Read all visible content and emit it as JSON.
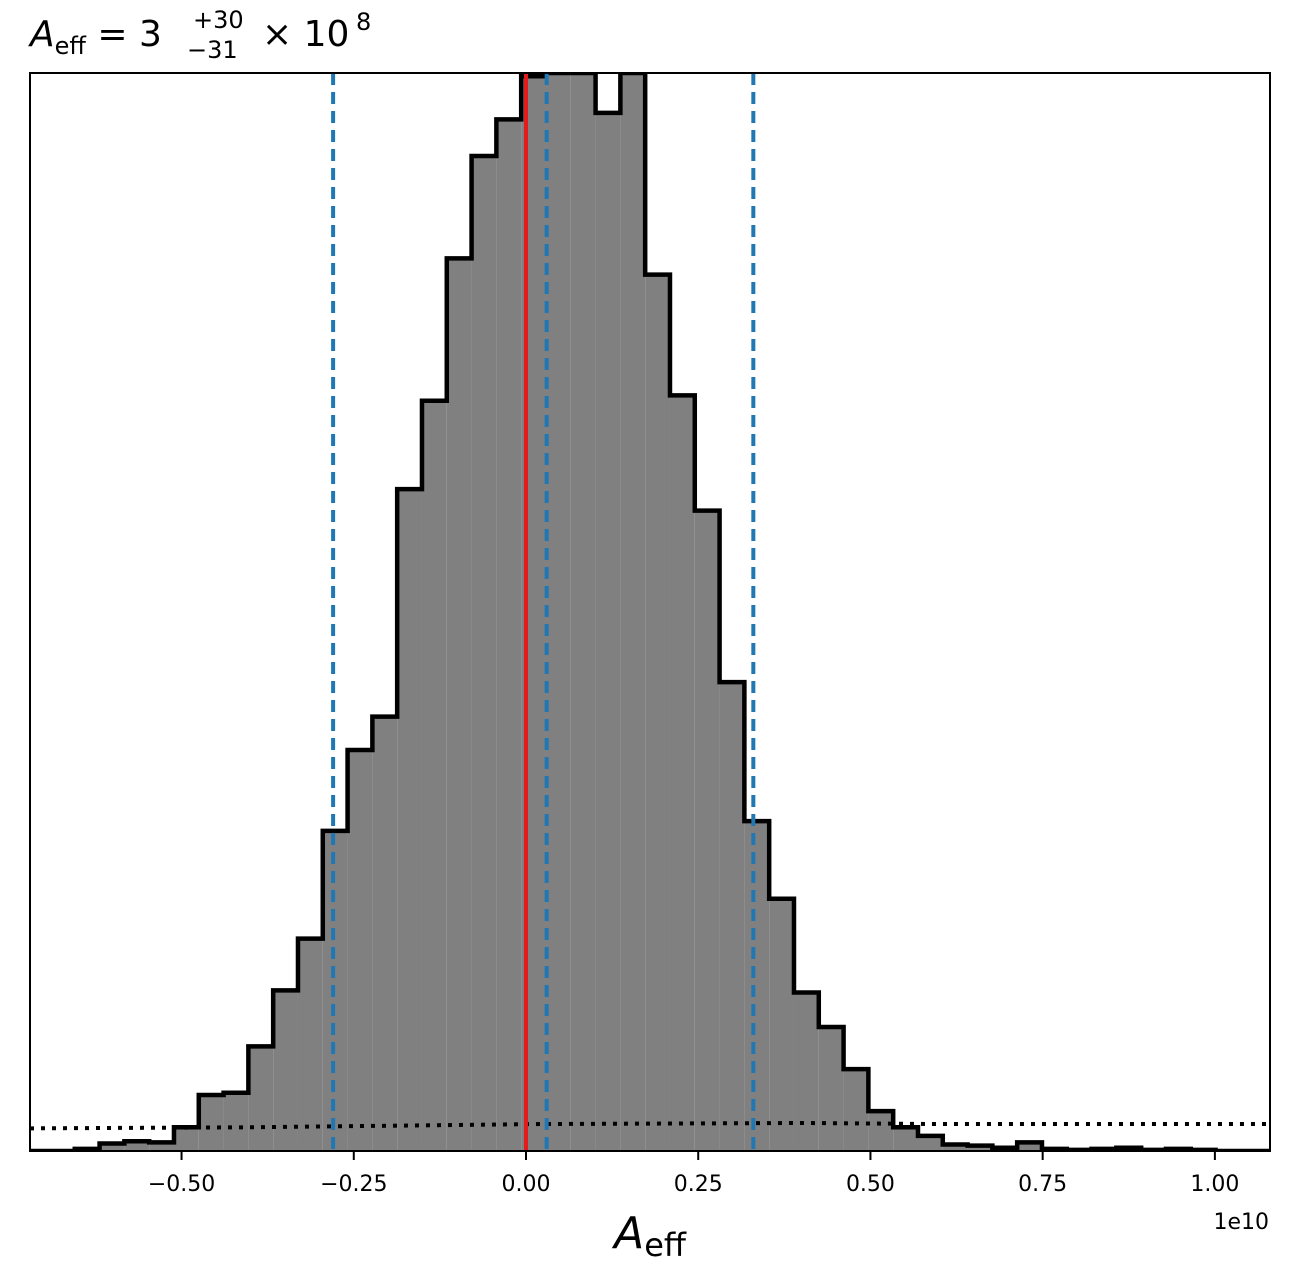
{
  "chart_data": {
    "type": "histogram",
    "title": {
      "symbol": "A",
      "symbol_subscript": "eff",
      "equals": " = 3",
      "upper_error": "+30",
      "lower_error": "−31",
      "multiplier": "× 10",
      "exponent": "8"
    },
    "xlabel": {
      "symbol": "A",
      "subscript": "eff"
    },
    "x_offset_label": "1e10",
    "xlim": [
      -0.72,
      1.08
    ],
    "ylim": [
      0,
      1.0
    ],
    "x_unit_scale": 10000000000.0,
    "xticks": [
      -0.5,
      -0.25,
      0.0,
      0.25,
      0.5,
      0.75,
      1.0
    ],
    "xtick_labels": [
      "−0.50",
      "−0.25",
      "0.00",
      "0.25",
      "0.50",
      "0.75",
      "1.00"
    ],
    "bin_edges": [
      -0.72,
      -0.655,
      -0.619,
      -0.583,
      -0.547,
      -0.511,
      -0.475,
      -0.439,
      -0.403,
      -0.367,
      -0.331,
      -0.295,
      -0.259,
      -0.223,
      -0.187,
      -0.151,
      -0.115,
      -0.079,
      -0.043,
      -0.007,
      0.029,
      0.065,
      0.101,
      0.137,
      0.173,
      0.209,
      0.245,
      0.281,
      0.317,
      0.353,
      0.389,
      0.425,
      0.461,
      0.497,
      0.533,
      0.569,
      0.605,
      0.641,
      0.677,
      0.713,
      0.749,
      0.785,
      0.821,
      0.857,
      0.893,
      0.929,
      0.965,
      1.001,
      1.08
    ],
    "counts": [
      0.0,
      0.002,
      0.007,
      0.009,
      0.008,
      0.022,
      0.052,
      0.054,
      0.097,
      0.149,
      0.197,
      0.297,
      0.372,
      0.403,
      0.614,
      0.696,
      0.828,
      0.923,
      0.957,
      0.997,
      1.0,
      1.0,
      0.963,
      1.0,
      0.813,
      0.701,
      0.594,
      0.435,
      0.306,
      0.234,
      0.147,
      0.115,
      0.076,
      0.037,
      0.022,
      0.014,
      0.006,
      0.005,
      0.003,
      0.008,
      0.002,
      0.001,
      0.002,
      0.003,
      0.001,
      0.002,
      0.001,
      0.0
    ],
    "prior_level": 0.021,
    "prior_points": [
      [
        -0.72,
        0.021
      ],
      [
        -0.4,
        0.022
      ],
      [
        0.02,
        0.025
      ],
      [
        0.4,
        0.026
      ],
      [
        0.6,
        0.025
      ],
      [
        1.08,
        0.025
      ]
    ],
    "median": 0.03,
    "lower_bound": -0.28,
    "upper_bound": 0.33,
    "truth": 0.0,
    "colors": {
      "hist_fill": "#808080",
      "hist_edge": "#000000",
      "quantile_lines": "#1f77b4",
      "truth_line": "#e41a1c",
      "prior_line": "#000000"
    }
  }
}
